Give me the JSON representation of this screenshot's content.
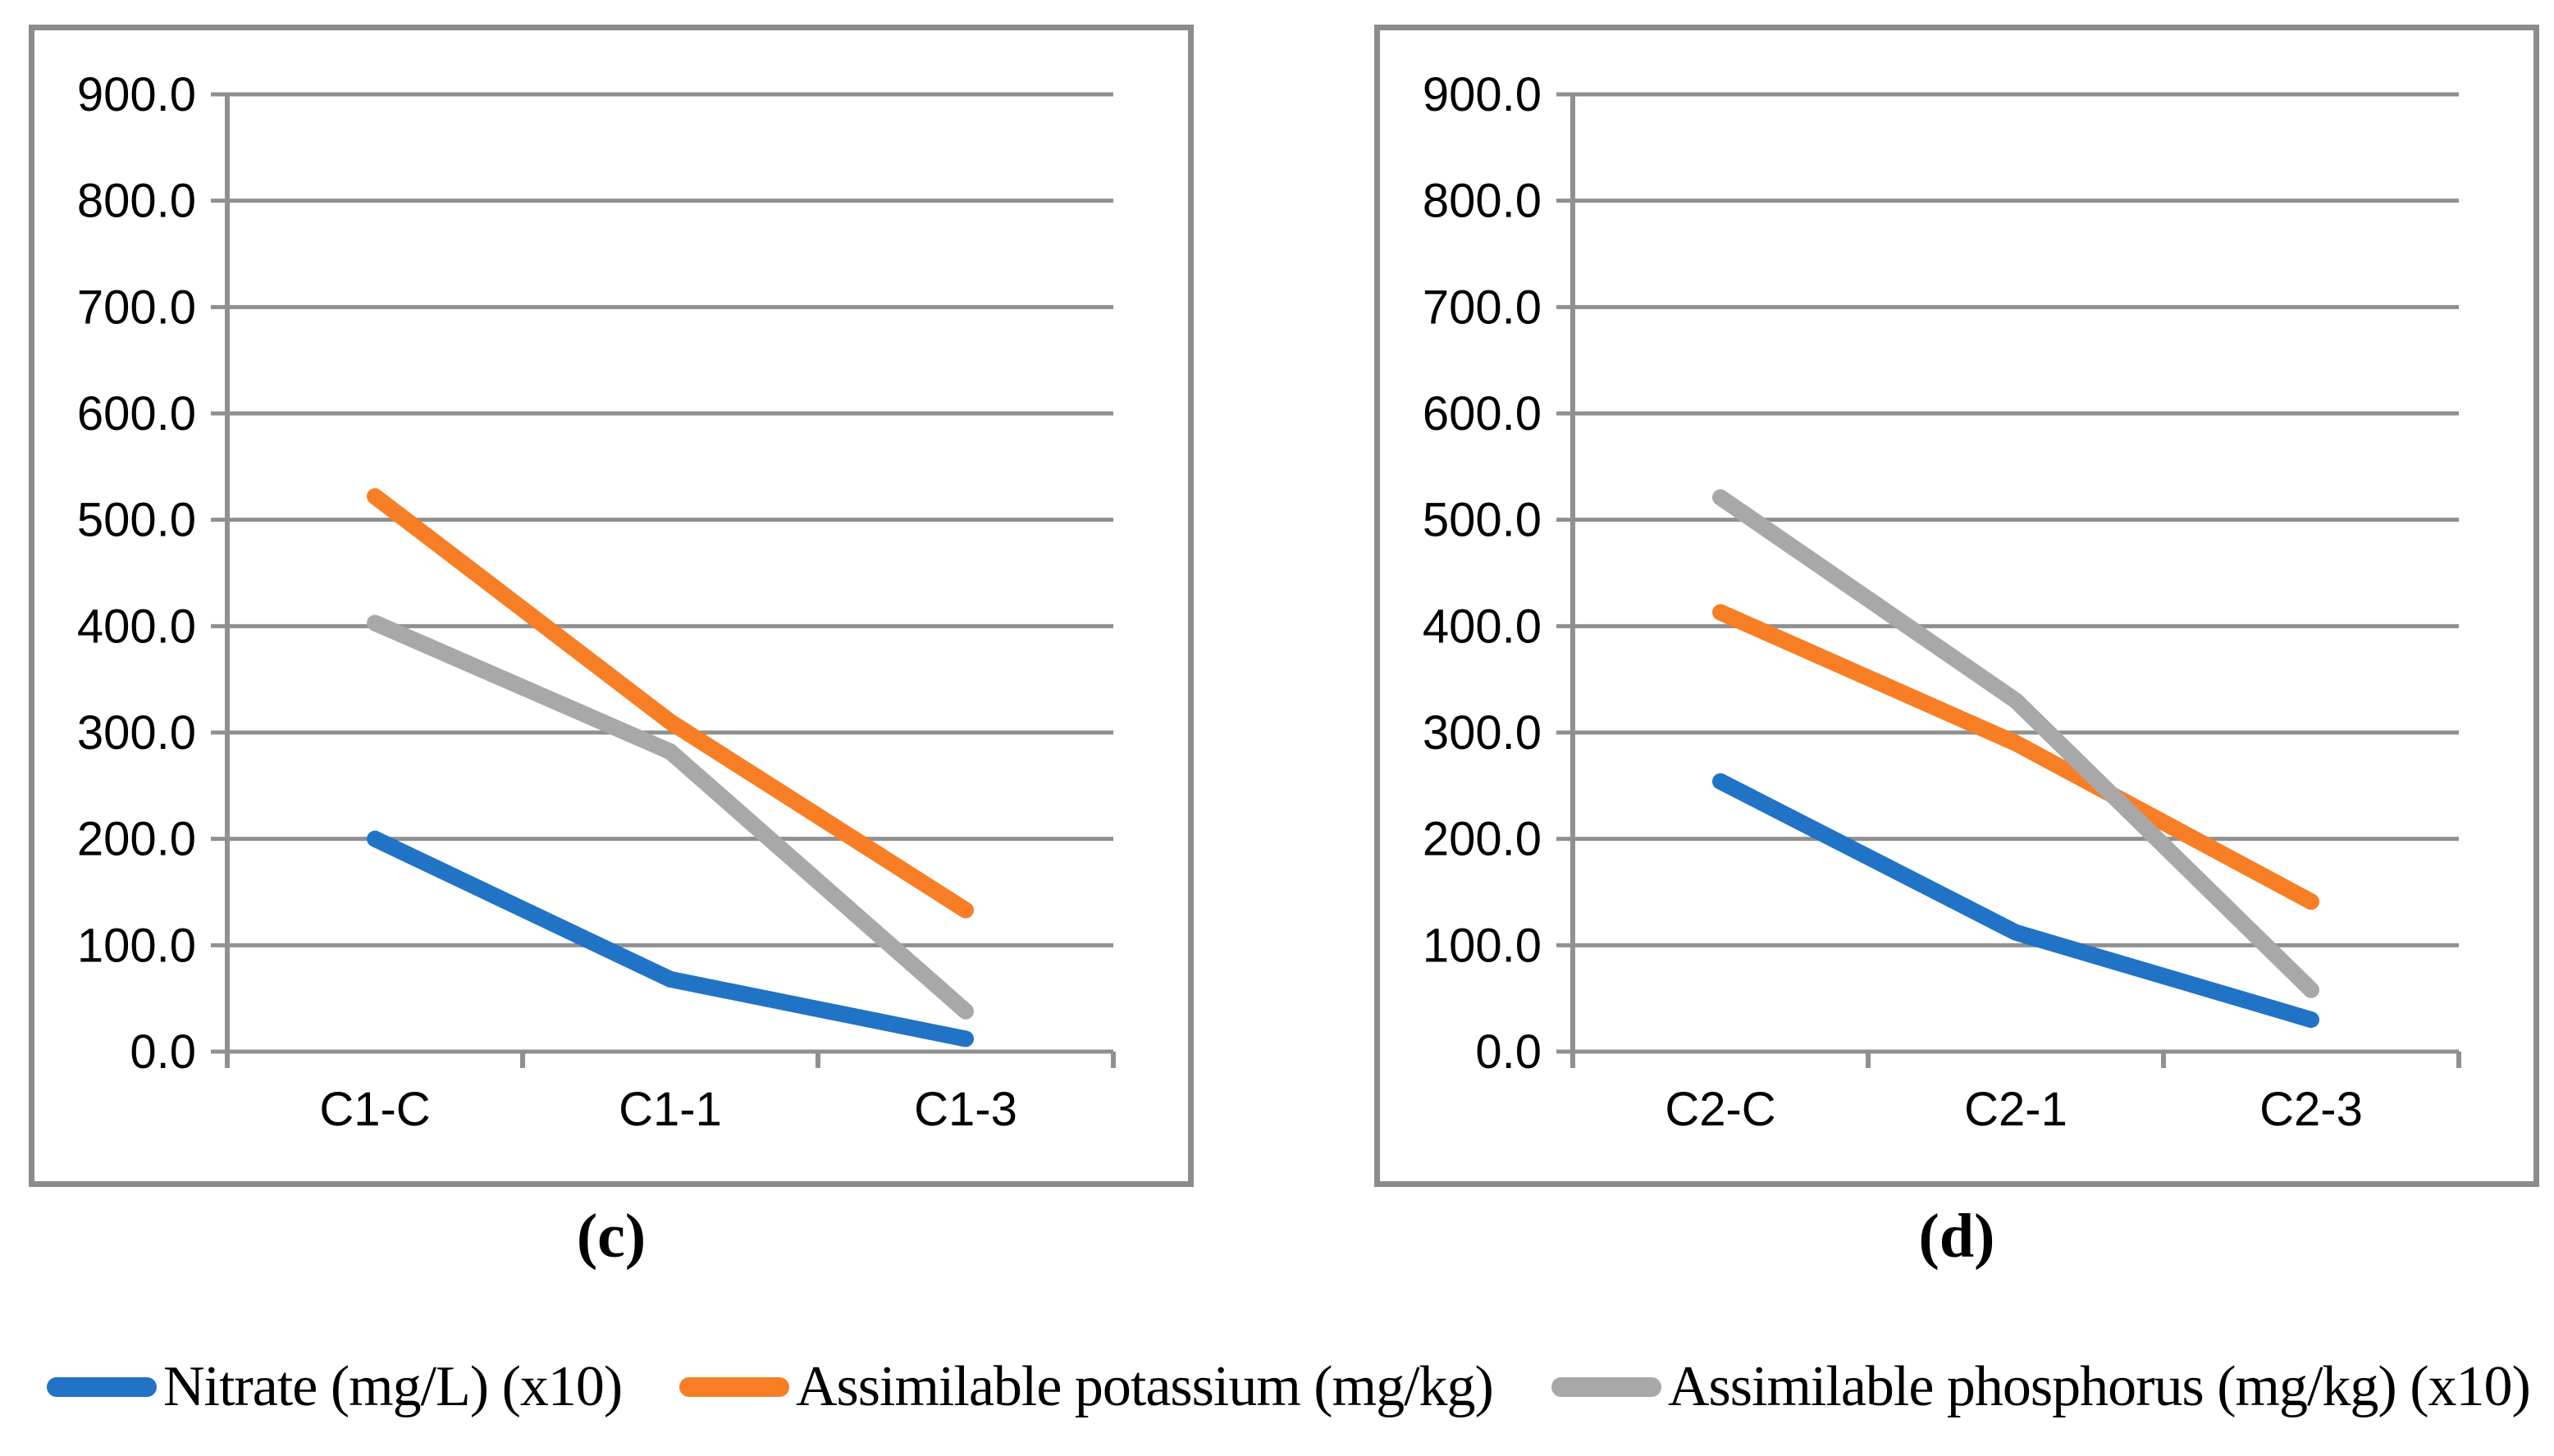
{
  "figure": {
    "background": "#FFFFFF",
    "panel_border_color": "#8C8C8C",
    "grid_color": "#909090",
    "axis_color": "#8C8C8C",
    "text_color": "#000000"
  },
  "captions": {
    "left": "(c)",
    "right": "(d)"
  },
  "legend": {
    "position": "bottom-shared",
    "items": [
      {
        "label": "Nitrate (mg/L) (x10)",
        "color": "#2173C6",
        "swatch": "rounded-line"
      },
      {
        "label": "Assimilable potassium (mg/kg)",
        "color": "#F87E25",
        "swatch": "rounded-line"
      },
      {
        "label": "Assimilable phosphorus (mg/kg) (x10)",
        "color": "#A8A8A8",
        "swatch": "rounded-line"
      }
    ]
  },
  "chart_data": [
    {
      "type": "line",
      "panel_label": "(c)",
      "title": "",
      "xlabel": "",
      "ylabel": "",
      "categories": [
        "C1-C",
        "C1-1",
        "C1-3"
      ],
      "series": [
        {
          "name": "Nitrate (mg/L) (x10)",
          "color": "#2173C6",
          "values": [
            200,
            68,
            12
          ]
        },
        {
          "name": "Assimilable potassium (mg/kg)",
          "color": "#F87E25",
          "values": [
            522,
            310,
            133
          ]
        },
        {
          "name": "Assimilable phosphorus (mg/kg) (x10)",
          "color": "#A8A8A8",
          "values": [
            403,
            282,
            38
          ]
        }
      ],
      "draw_order": [
        0,
        2,
        1
      ],
      "ylim": [
        0,
        900
      ],
      "ytick_step": 100,
      "yticks": [
        "0.0",
        "100.0",
        "200.0",
        "300.0",
        "400.0",
        "500.0",
        "600.0",
        "700.0",
        "800.0",
        "900.0"
      ],
      "grid": true,
      "legend_position": "shared-bottom"
    },
    {
      "type": "line",
      "panel_label": "(d)",
      "title": "",
      "xlabel": "",
      "ylabel": "",
      "categories": [
        "C2-C",
        "C2-1",
        "C2-3"
      ],
      "series": [
        {
          "name": "Nitrate (mg/L) (x10)",
          "color": "#2173C6",
          "values": [
            254,
            112,
            30
          ]
        },
        {
          "name": "Assimilable potassium (mg/kg)",
          "color": "#F87E25",
          "values": [
            413,
            290,
            141
          ]
        },
        {
          "name": "Assimilable phosphorus (mg/kg) (x10)",
          "color": "#A8A8A8",
          "values": [
            521,
            330,
            58
          ]
        }
      ],
      "draw_order": [
        0,
        1,
        2
      ],
      "ylim": [
        0,
        900
      ],
      "ytick_step": 100,
      "yticks": [
        "0.0",
        "100.0",
        "200.0",
        "300.0",
        "400.0",
        "500.0",
        "600.0",
        "700.0",
        "800.0",
        "900.0"
      ],
      "grid": true,
      "legend_position": "shared-bottom"
    }
  ]
}
